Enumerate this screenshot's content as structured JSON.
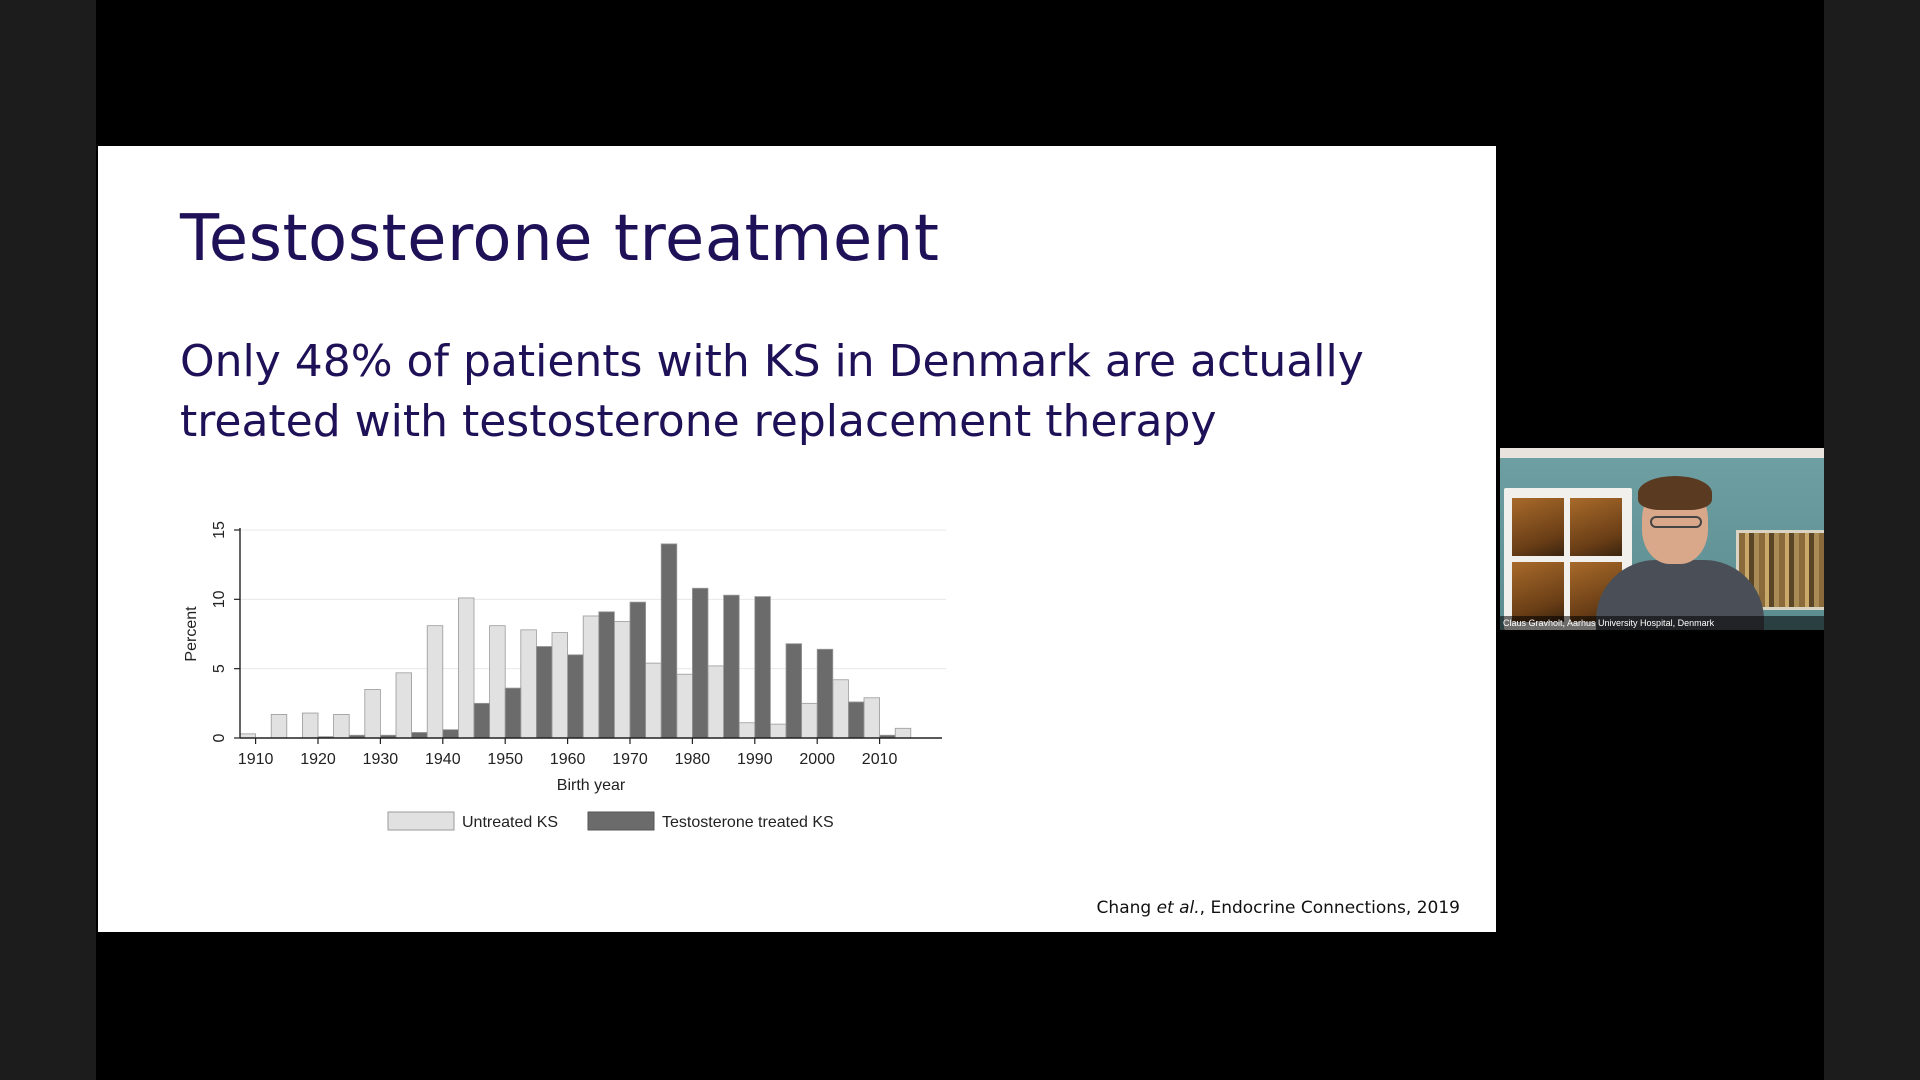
{
  "slide": {
    "title": "Testosterone treatment",
    "subtitle": "Only 48% of patients with KS in Denmark are actually treated with testosterone replacement therapy",
    "citation": {
      "author": "Chang ",
      "etal": "et al.",
      "rest": ", Endocrine Connections, 2019"
    }
  },
  "video": {
    "participant_label": "Claus Gravholt, Aarhus University Hospital, Denmark"
  },
  "colors": {
    "title": "#1f1157",
    "untreated": "#e1e1e1",
    "treated": "#6b6b6b"
  },
  "chart_data": {
    "type": "bar",
    "xlabel": "Birth year",
    "ylabel": "Percent",
    "ylim": [
      0,
      15
    ],
    "yticks": [
      0,
      5,
      10,
      15
    ],
    "xticks": [
      1910,
      1920,
      1930,
      1940,
      1950,
      1960,
      1970,
      1980,
      1990,
      2000,
      2010
    ],
    "xlim": [
      1907.5,
      2020
    ],
    "bin_width": 5,
    "grid": true,
    "legend": "bottom",
    "series": [
      {
        "name": "Untreated KS",
        "x": [
          1910,
          1915,
          1920,
          1925,
          1930,
          1935,
          1940,
          1945,
          1950,
          1955,
          1960,
          1965,
          1970,
          1975,
          1980,
          1985,
          1990,
          1995,
          2000,
          2005,
          2010,
          2015
        ],
        "values": [
          0.3,
          1.7,
          1.8,
          1.7,
          3.5,
          4.7,
          8.1,
          10.1,
          8.1,
          7.8,
          7.6,
          8.8,
          8.4,
          5.4,
          4.6,
          5.2,
          1.1,
          1.0,
          2.5,
          4.2,
          2.9,
          0.7
        ]
      },
      {
        "name": "Testosterone treated KS",
        "x": [
          1920,
          1925,
          1930,
          1935,
          1940,
          1945,
          1950,
          1955,
          1960,
          1965,
          1970,
          1975,
          1980,
          1985,
          1990,
          1995,
          2000,
          2005,
          2010
        ],
        "values": [
          0.1,
          0.2,
          0.2,
          0.4,
          0.6,
          2.5,
          3.6,
          6.6,
          6.0,
          9.1,
          9.8,
          14.0,
          10.8,
          10.3,
          10.2,
          6.8,
          6.4,
          2.6,
          0.2
        ]
      }
    ]
  }
}
